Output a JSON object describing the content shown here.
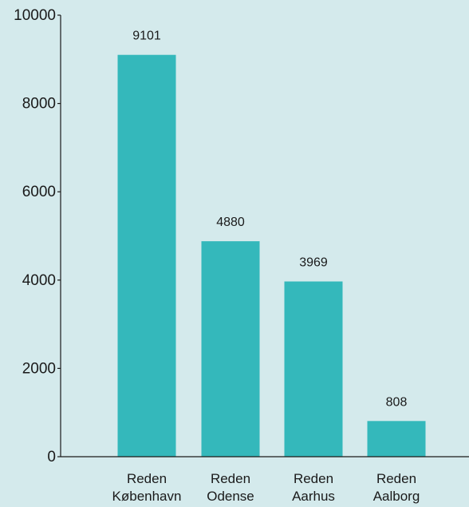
{
  "chart_data": {
    "type": "bar",
    "title": "",
    "xlabel": "",
    "ylabel": "",
    "categories": [
      [
        "Reden",
        "København"
      ],
      [
        "Reden",
        "Odense"
      ],
      [
        "Reden",
        "Aarhus"
      ],
      [
        "Reden",
        "Aalborg"
      ]
    ],
    "values": [
      9101,
      4880,
      3969,
      808
    ],
    "data_labels": [
      "9101",
      "4880",
      "3969",
      "808"
    ],
    "ylim": [
      0,
      10000
    ],
    "yticks": [
      0,
      2000,
      4000,
      6000,
      8000,
      10000
    ],
    "ytick_labels": [
      "0",
      "2000",
      "4000",
      "6000",
      "8000",
      "10000"
    ],
    "grid": false,
    "legend": "none",
    "colors": {
      "bar": "#34b8bb",
      "background": "#d4eaec",
      "axis": "#1a1a1a"
    }
  }
}
